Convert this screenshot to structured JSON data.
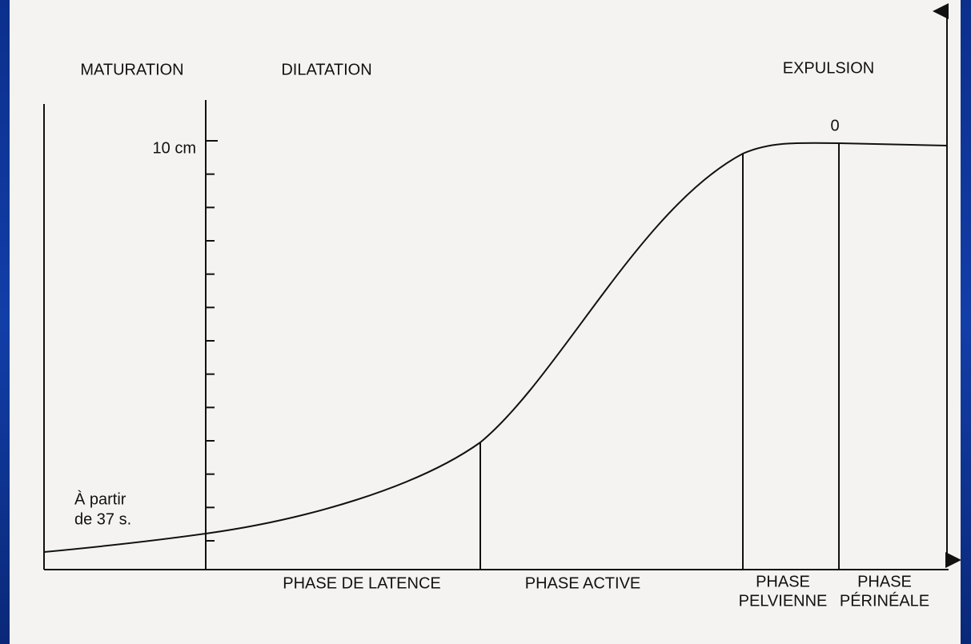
{
  "header": {
    "left": "MATURATION",
    "middle": "DILATATION",
    "right": "EXPULSION"
  },
  "axis": {
    "top_label": "10 cm",
    "zero_label": "0"
  },
  "note": {
    "line1": "À partir",
    "line2": "de 37 s."
  },
  "phases": [
    {
      "lines": [
        "PHASE DE LATENCE"
      ]
    },
    {
      "lines": [
        "PHASE ACTIVE"
      ]
    },
    {
      "lines": [
        "PHASE",
        "PELVIENNE"
      ]
    },
    {
      "lines": [
        "PHASE",
        "PÉRINÉALE"
      ]
    }
  ]
}
